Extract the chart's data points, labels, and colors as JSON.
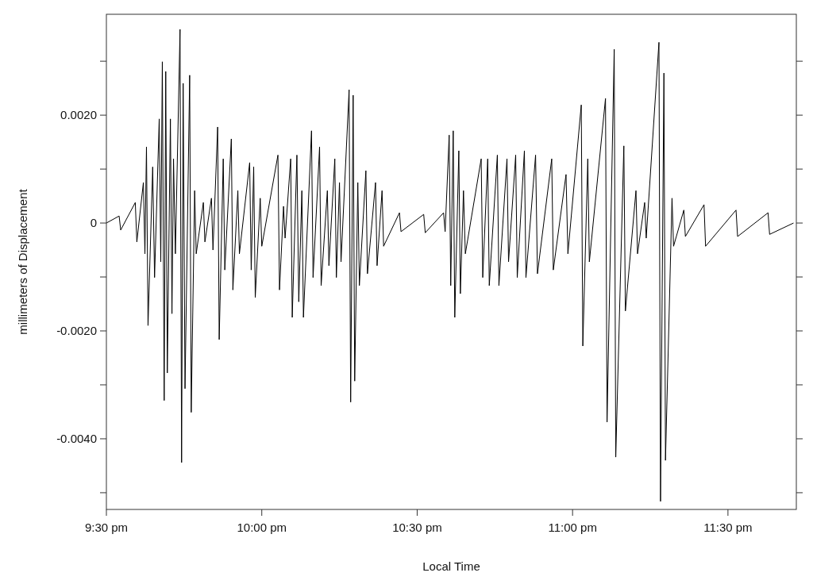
{
  "chart_data": {
    "type": "line",
    "xlabel": "Local Time",
    "ylabel": "millimeters of Displacement",
    "xlim": [
      21.5,
      23.72
    ],
    "ylim": [
      -0.00531,
      0.00387
    ],
    "xticks": [
      {
        "value": 21.5,
        "label": "9:30 pm"
      },
      {
        "value": 22,
        "label": "10:00 pm"
      },
      {
        "value": 22.5,
        "label": "10:30 pm"
      },
      {
        "value": 23,
        "label": "11:00 pm"
      },
      {
        "value": 23.5,
        "label": "11:30 pm"
      }
    ],
    "yticks": [
      {
        "value": -0.005,
        "label": null
      },
      {
        "value": -0.004,
        "label": "-0.0040"
      },
      {
        "value": -0.003,
        "label": null
      },
      {
        "value": -0.002,
        "label": "-0.0020"
      },
      {
        "value": -0.001,
        "label": null
      },
      {
        "value": 0,
        "label": "0"
      },
      {
        "value": 0.001,
        "label": null
      },
      {
        "value": 0.002,
        "label": "0.0020"
      },
      {
        "value": 0.003,
        "label": null
      }
    ],
    "grid": false,
    "x": [
      21.5,
      21.541,
      21.546,
      21.593,
      21.598,
      21.619,
      21.624,
      21.629,
      21.634,
      21.649,
      21.655,
      21.67,
      21.675,
      21.68,
      21.686,
      21.691,
      21.696,
      21.706,
      21.711,
      21.716,
      21.722,
      21.737,
      21.742,
      21.747,
      21.753,
      21.768,
      21.773,
      21.784,
      21.789,
      21.812,
      21.817,
      21.838,
      21.843,
      21.858,
      21.863,
      21.876,
      21.881,
      21.902,
      21.907,
      21.923,
      21.928,
      21.961,
      21.966,
      21.974,
      21.979,
      21.995,
      22.0,
      22.052,
      22.057,
      22.07,
      22.075,
      22.093,
      22.098,
      22.113,
      22.119,
      22.129,
      22.134,
      22.16,
      22.165,
      22.186,
      22.191,
      22.211,
      22.216,
      22.235,
      22.24,
      22.25,
      22.255,
      22.281,
      22.286,
      22.294,
      22.299,
      22.309,
      22.314,
      22.335,
      22.34,
      22.366,
      22.371,
      22.387,
      22.392,
      22.443,
      22.448,
      22.521,
      22.526,
      22.585,
      22.59,
      22.603,
      22.608,
      22.616,
      22.621,
      22.634,
      22.639,
      22.649,
      22.655,
      22.706,
      22.711,
      22.727,
      22.732,
      22.758,
      22.763,
      22.789,
      22.794,
      22.817,
      22.822,
      22.845,
      22.85,
      22.881,
      22.887,
      22.933,
      22.938,
      22.979,
      22.985,
      23.028,
      23.033,
      23.049,
      23.054,
      23.106,
      23.111,
      23.134,
      23.139,
      23.165,
      23.17,
      23.204,
      23.209,
      23.232,
      23.237,
      23.278,
      23.283,
      23.294,
      23.299,
      23.32,
      23.325,
      23.358,
      23.363,
      23.423,
      23.428,
      23.526,
      23.531,
      23.629,
      23.634,
      23.711
    ],
    "series": [
      {
        "color": "#000000",
        "values": [
          0,
          0.00013,
          -0.00013,
          0.00038,
          -0.00035,
          0.00075,
          -0.00057,
          0.00141,
          -0.0019,
          0.00104,
          -0.00101,
          0.00193,
          -0.00072,
          0.00299,
          -0.00329,
          0.00281,
          -0.00278,
          0.00193,
          -0.00168,
          0.00119,
          -0.00057,
          0.00359,
          -0.00444,
          0.00259,
          -0.00307,
          0.00274,
          -0.00351,
          0.0006,
          -0.00057,
          0.00038,
          -0.00035,
          0.00046,
          -0.0005,
          0.00178,
          -0.00216,
          0.00119,
          -0.00087,
          0.00156,
          -0.00124,
          0.0006,
          -0.00057,
          0.00112,
          -0.00087,
          0.00104,
          -0.00138,
          0.00046,
          -0.00043,
          0.00126,
          -0.00124,
          0.00031,
          -0.00028,
          0.00119,
          -0.00175,
          0.00126,
          -0.00146,
          0.0006,
          -0.00175,
          0.00171,
          -0.00101,
          0.00141,
          -0.00116,
          0.0006,
          -0.00079,
          0.00119,
          -0.00101,
          0.00075,
          -0.00072,
          0.00247,
          -0.00332,
          0.00237,
          -0.00293,
          0.00075,
          -0.00116,
          0.00097,
          -0.00094,
          0.00075,
          -0.00079,
          0.0006,
          -0.00043,
          0.00019,
          -0.00016,
          0.00016,
          -0.00018,
          0.00019,
          -0.00016,
          0.00163,
          -0.00116,
          0.00171,
          -0.00175,
          0.00134,
          -0.00131,
          0.0006,
          -0.00057,
          0.00119,
          -0.00101,
          0.00119,
          -0.00116,
          0.00126,
          -0.00116,
          0.00119,
          -0.00072,
          0.00126,
          -0.00101,
          0.00134,
          -0.00101,
          0.00126,
          -0.00094,
          0.00119,
          -0.00087,
          0.0009,
          -0.00057,
          0.00219,
          -0.00228,
          0.00119,
          -0.00072,
          0.00231,
          -0.00369,
          0.00322,
          -0.00434,
          0.00143,
          -0.00163,
          0.0006,
          -0.00057,
          0.00038,
          -0.00028,
          0.00335,
          -0.00516,
          0.00278,
          -0.0044,
          0.00046,
          -0.00043,
          0.00024,
          -0.00025,
          0.00034,
          -0.00043,
          0.00024,
          -0.00025,
          0.00019,
          -0.00021,
          0
        ]
      }
    ]
  }
}
